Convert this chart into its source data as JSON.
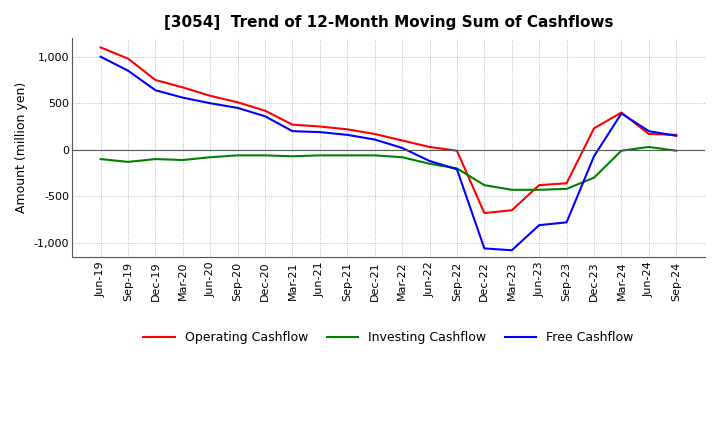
{
  "title": "[3054]  Trend of 12-Month Moving Sum of Cashflows",
  "ylabel": "Amount (million yen)",
  "ylim": [
    -1150,
    1200
  ],
  "yticks": [
    -1000,
    -500,
    0,
    500,
    1000
  ],
  "background_color": "#ffffff",
  "plot_bg_color": "#ffffff",
  "grid_color": "#aaaaaa",
  "x_labels": [
    "Jun-19",
    "Sep-19",
    "Dec-19",
    "Mar-20",
    "Jun-20",
    "Sep-20",
    "Dec-20",
    "Mar-21",
    "Jun-21",
    "Sep-21",
    "Dec-21",
    "Mar-22",
    "Jun-22",
    "Sep-22",
    "Dec-22",
    "Mar-23",
    "Jun-23",
    "Sep-23",
    "Dec-23",
    "Mar-24",
    "Jun-24",
    "Sep-24"
  ],
  "operating": [
    1100,
    980,
    750,
    670,
    580,
    510,
    420,
    270,
    250,
    220,
    170,
    100,
    30,
    -10,
    -680,
    -650,
    -380,
    -360,
    230,
    400,
    170,
    160
  ],
  "investing": [
    -100,
    -130,
    -100,
    -110,
    -80,
    -60,
    -60,
    -70,
    -60,
    -60,
    -60,
    -80,
    -150,
    -200,
    -380,
    -430,
    -430,
    -420,
    -300,
    -10,
    30,
    -10
  ],
  "free": [
    1000,
    850,
    640,
    560,
    500,
    450,
    360,
    200,
    190,
    160,
    110,
    20,
    -120,
    -210,
    -1060,
    -1080,
    -810,
    -780,
    -70,
    390,
    200,
    150
  ],
  "line_colors": {
    "operating": "#ff0000",
    "investing": "#008000",
    "free": "#0000ff"
  },
  "legend_labels": [
    "Operating Cashflow",
    "Investing Cashflow",
    "Free Cashflow"
  ]
}
